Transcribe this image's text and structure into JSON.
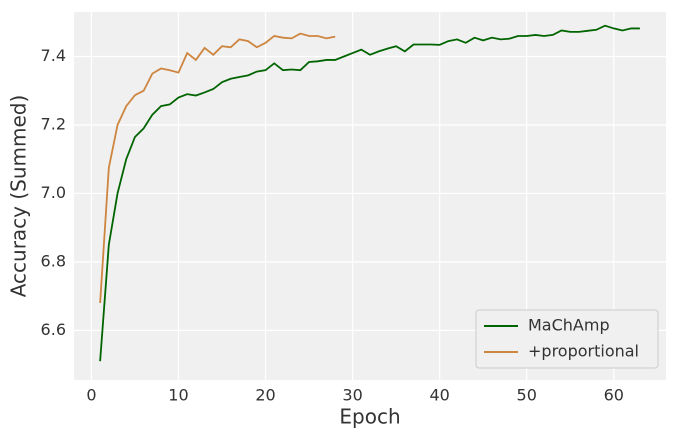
{
  "chart_data": {
    "type": "line",
    "xlabel": "Epoch",
    "ylabel": "Accuracy (Summed)",
    "xlim": [
      -2,
      66
    ],
    "ylim": [
      6.455,
      7.53
    ],
    "xticks": [
      0,
      10,
      20,
      30,
      40,
      50,
      60
    ],
    "yticks": [
      {
        "value": 6.6,
        "label": "6.6"
      },
      {
        "value": 6.8,
        "label": "6.8"
      },
      {
        "value": 7.0,
        "label": "7.0"
      },
      {
        "value": 7.2,
        "label": "7.2"
      },
      {
        "value": 7.4,
        "label": "7.4"
      }
    ],
    "grid": true,
    "legend": "lower right",
    "series": [
      {
        "name": "MaChAmp",
        "color": "#006400",
        "x": [
          1,
          2,
          3,
          4,
          5,
          6,
          7,
          8,
          9,
          10,
          11,
          12,
          13,
          14,
          15,
          16,
          17,
          18,
          19,
          20,
          21,
          22,
          23,
          24,
          25,
          26,
          27,
          28,
          29,
          30,
          31,
          32,
          33,
          34,
          35,
          36,
          37,
          38,
          39,
          40,
          41,
          42,
          43,
          44,
          45,
          46,
          47,
          48,
          49,
          50,
          51,
          52,
          53,
          54,
          55,
          56,
          57,
          58,
          59,
          60,
          61,
          62,
          63
        ],
        "values": [
          6.51,
          6.85,
          7.0,
          7.1,
          7.165,
          7.19,
          7.23,
          7.255,
          7.26,
          7.28,
          7.29,
          7.286,
          7.295,
          7.305,
          7.325,
          7.335,
          7.34,
          7.345,
          7.356,
          7.36,
          7.38,
          7.36,
          7.362,
          7.36,
          7.384,
          7.386,
          7.39,
          7.39,
          7.4,
          7.41,
          7.42,
          7.405,
          7.415,
          7.423,
          7.43,
          7.415,
          7.435,
          7.435,
          7.435,
          7.434,
          7.445,
          7.45,
          7.44,
          7.455,
          7.447,
          7.455,
          7.45,
          7.452,
          7.46,
          7.46,
          7.463,
          7.46,
          7.463,
          7.476,
          7.472,
          7.472,
          7.475,
          7.478,
          7.49,
          7.482,
          7.476,
          7.482,
          7.482
        ]
      },
      {
        "name": "+proportional",
        "color": "#cd853f",
        "x": [
          1,
          2,
          3,
          4,
          5,
          6,
          7,
          8,
          9,
          10,
          11,
          12,
          13,
          14,
          15,
          16,
          17,
          18,
          19,
          20,
          21,
          22,
          23,
          24,
          25,
          26,
          27,
          28
        ],
        "values": [
          6.68,
          7.075,
          7.2,
          7.255,
          7.287,
          7.3,
          7.35,
          7.365,
          7.36,
          7.353,
          7.41,
          7.39,
          7.425,
          7.405,
          7.43,
          7.427,
          7.45,
          7.445,
          7.427,
          7.44,
          7.46,
          7.455,
          7.453,
          7.467,
          7.46,
          7.46,
          7.453,
          7.458
        ]
      }
    ]
  }
}
